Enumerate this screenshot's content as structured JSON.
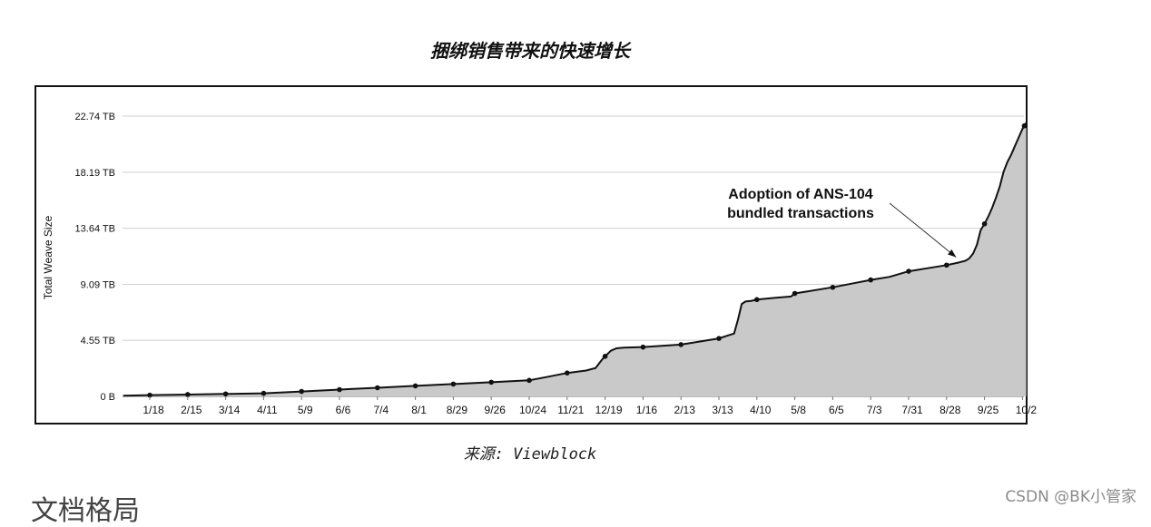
{
  "page": {
    "figure_title": "捆绑销售带来的快速增长",
    "source_caption": "来源: Viewblock",
    "watermark": "CSDN @BK小管家",
    "next_heading": "文档格局"
  },
  "chart_data": {
    "type": "area",
    "title": "",
    "ylabel": "Total Weave Size",
    "xlabel": "",
    "y_unit": "TB",
    "ylim": [
      0,
      22.74
    ],
    "yticks": [
      {
        "value": 0,
        "label": "0 B"
      },
      {
        "value": 4.55,
        "label": "4.55 TB"
      },
      {
        "value": 9.09,
        "label": "9.09 TB"
      },
      {
        "value": 13.64,
        "label": "13.64 TB"
      },
      {
        "value": 18.19,
        "label": "18.19 TB"
      },
      {
        "value": 22.74,
        "label": "22.74 TB"
      }
    ],
    "xticks": [
      "1/18",
      "2/15",
      "3/14",
      "4/11",
      "5/9",
      "6/6",
      "7/4",
      "8/1",
      "8/29",
      "9/26",
      "10/24",
      "11/21",
      "12/19",
      "1/16",
      "2/13",
      "3/13",
      "4/10",
      "5/8",
      "6/5",
      "7/3",
      "7/31",
      "8/28",
      "9/25",
      "10/2"
    ],
    "x": [
      -0.7,
      0,
      1,
      2,
      3,
      4,
      5,
      6,
      7,
      8,
      9,
      10,
      10.5,
      11,
      11.5,
      11.75,
      11.85,
      11.95,
      12.05,
      12.15,
      12.3,
      12.5,
      13,
      14,
      14.5,
      15,
      15.25,
      15.3,
      15.4,
      15.5,
      15.6,
      15.7,
      15.85,
      16,
      16.5,
      16.9,
      17,
      17.3,
      18,
      18.5,
      19,
      19.5,
      20,
      20.5,
      21,
      21.3,
      21.5,
      21.6,
      21.7,
      21.8,
      21.9,
      22,
      22.1,
      22.2,
      22.3,
      22.4,
      22.5,
      22.6,
      22.7,
      22.8,
      22.9,
      23,
      23.1
    ],
    "y": [
      0.05,
      0.1,
      0.15,
      0.2,
      0.25,
      0.4,
      0.55,
      0.7,
      0.85,
      1.0,
      1.15,
      1.3,
      1.6,
      1.9,
      2.1,
      2.3,
      2.7,
      3.1,
      3.4,
      3.7,
      3.9,
      3.95,
      4.0,
      4.2,
      4.45,
      4.7,
      4.95,
      5.0,
      5.1,
      6.2,
      7.5,
      7.7,
      7.75,
      7.85,
      8.0,
      8.1,
      8.35,
      8.5,
      8.85,
      9.15,
      9.45,
      9.7,
      10.15,
      10.4,
      10.65,
      10.85,
      11.0,
      11.2,
      11.6,
      12.3,
      13.5,
      14.0,
      14.6,
      15.3,
      16.1,
      17.0,
      18.2,
      19.0,
      19.6,
      20.3,
      21.0,
      21.7,
      22.2
    ],
    "markers_x": [
      0,
      1,
      2,
      3,
      4,
      5,
      6,
      7,
      8,
      9,
      10,
      11,
      12,
      13,
      14,
      15,
      16,
      17,
      18,
      19,
      20,
      21,
      22,
      23.05
    ],
    "annotation": {
      "lines": [
        "Adoption of ANS-104",
        "bundled transactions"
      ],
      "target_x": 21.25,
      "target_y": 11.3
    },
    "colors": {
      "fill": "#c9c9c9",
      "line": "#111111",
      "grid": "#cfcfcf"
    },
    "grid": "horizontal"
  }
}
